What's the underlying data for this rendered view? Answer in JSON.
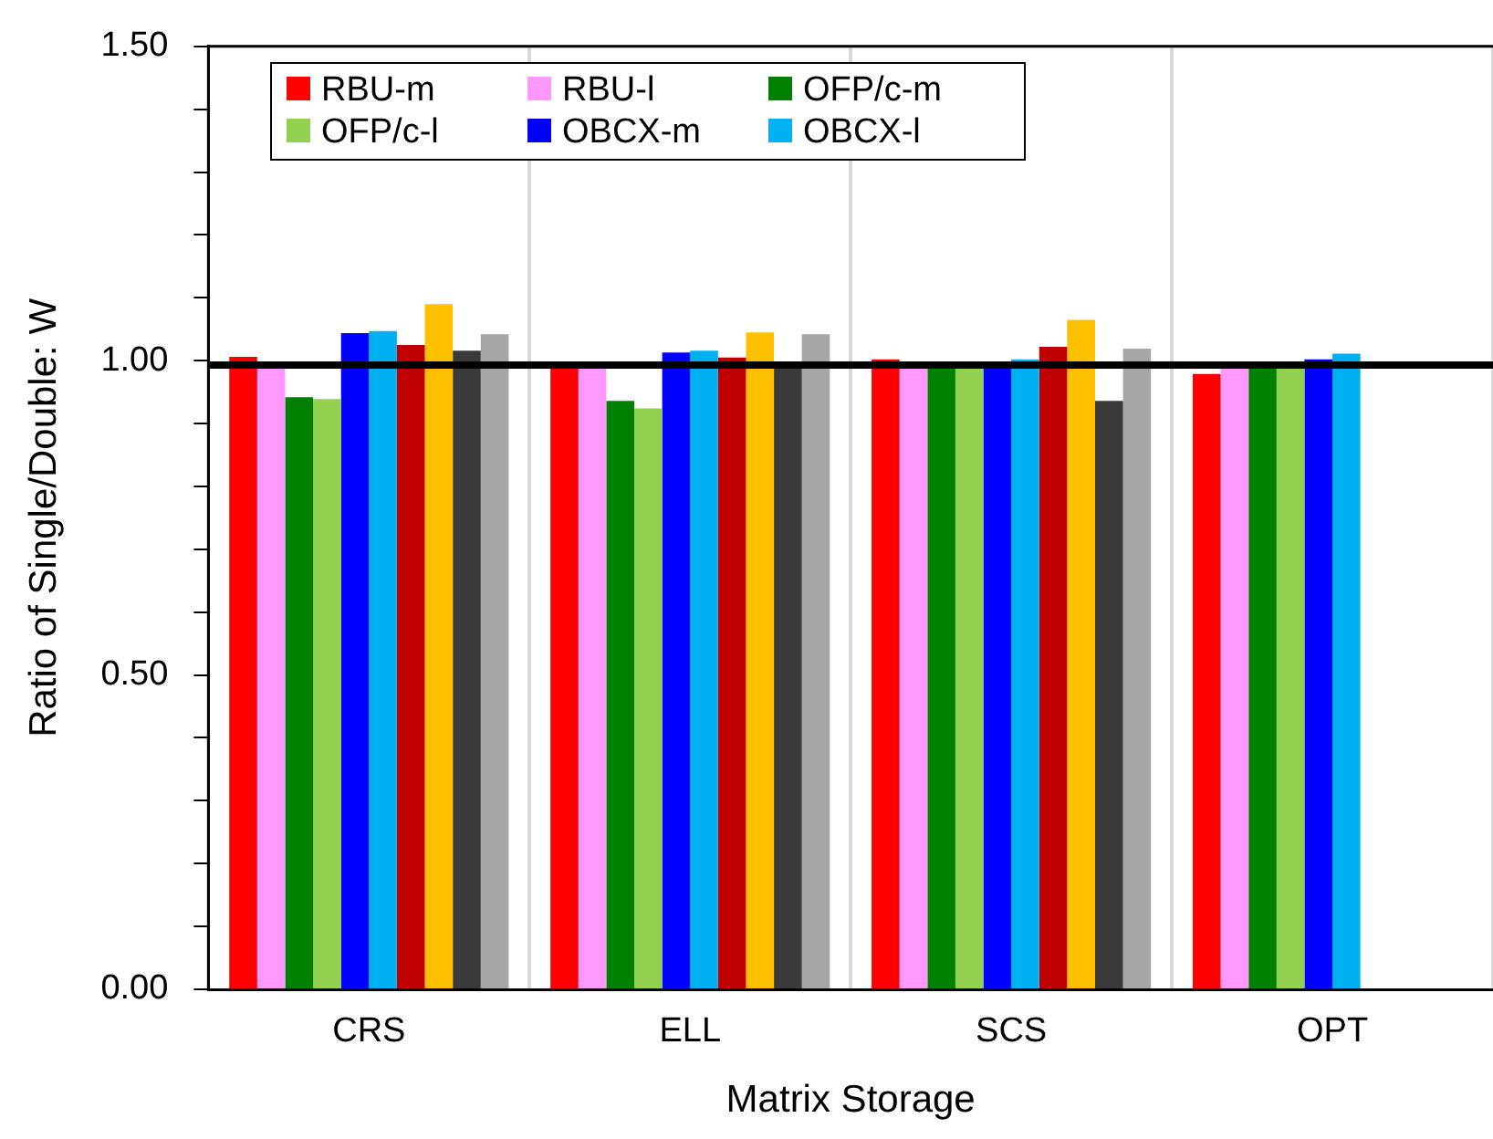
{
  "chart_data": {
    "type": "bar",
    "xlabel": "Matrix Storage",
    "ylabel": "Ratio of Single/Double: W",
    "categories": [
      "CRS",
      "ELL",
      "SCS",
      "OPT"
    ],
    "series": [
      {
        "name": "RBU-m",
        "color": "#ff0000",
        "values": [
          1.006,
          0.99,
          1.002,
          0.979
        ]
      },
      {
        "name": "RBU-l",
        "color": "#ff99ff",
        "values": [
          0.99,
          0.99,
          0.99,
          0.99
        ]
      },
      {
        "name": "OFP/c-m",
        "color": "#008000",
        "values": [
          0.942,
          0.936,
          0.99,
          0.99
        ]
      },
      {
        "name": "OFP/c-l",
        "color": "#92d050",
        "values": [
          0.939,
          0.924,
          0.99,
          0.99
        ]
      },
      {
        "name": "OBCX-m",
        "color": "#0000ff",
        "values": [
          1.044,
          1.013,
          0.99,
          1.002
        ]
      },
      {
        "name": "OBCX-l",
        "color": "#00b0f0",
        "values": [
          1.047,
          1.016,
          1.002,
          1.011
        ]
      },
      {
        "color": "#c00000",
        "values": [
          1.025,
          1.005,
          1.022,
          null
        ]
      },
      {
        "color": "#ffc000",
        "values": [
          1.09,
          1.045,
          1.065,
          null
        ]
      },
      {
        "color": "#3a3a3a",
        "values": [
          1.016,
          0.99,
          0.936,
          null
        ]
      },
      {
        "color": "#a6a6a6",
        "values": [
          1.042,
          1.042,
          1.019,
          null
        ]
      }
    ],
    "ylim": [
      0,
      1.5
    ],
    "yticks": [
      {
        "value": 0,
        "label": "0.00"
      },
      {
        "value": 0.1,
        "label": null
      },
      {
        "value": 0.2,
        "label": null
      },
      {
        "value": 0.3,
        "label": null
      },
      {
        "value": 0.4,
        "label": null
      },
      {
        "value": 0.5,
        "label": "0.50"
      },
      {
        "value": 0.6,
        "label": null
      },
      {
        "value": 0.7,
        "label": null
      },
      {
        "value": 0.8,
        "label": null
      },
      {
        "value": 0.9,
        "label": null
      },
      {
        "value": 1,
        "label": "1.00"
      },
      {
        "value": 1.1,
        "label": null
      },
      {
        "value": 1.2,
        "label": null
      },
      {
        "value": 1.3,
        "label": null
      },
      {
        "value": 1.4,
        "label": null
      },
      {
        "value": 1.5,
        "label": "1.50"
      }
    ],
    "ref_lines": [
      {
        "axis": "y",
        "value": 0.993,
        "color": "#000000"
      }
    ],
    "grid": "x",
    "legend": "top left"
  }
}
